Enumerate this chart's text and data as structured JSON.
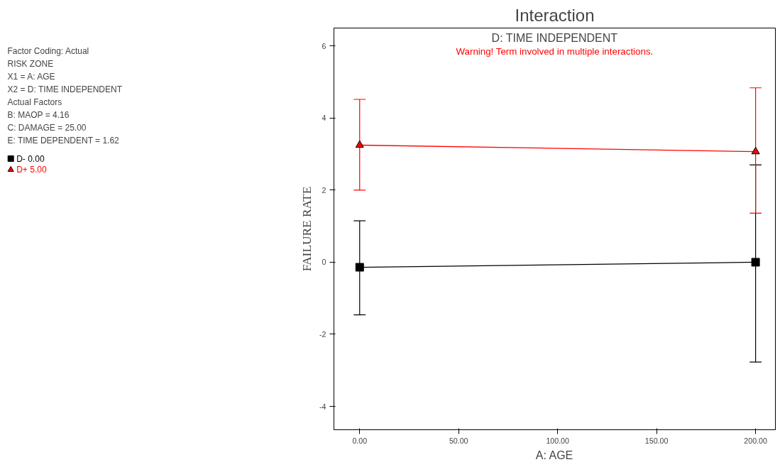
{
  "chart_data": {
    "type": "line",
    "title": "Interaction",
    "subtitle": "D: TIME INDEPENDENT",
    "xlabel": "A: AGE",
    "ylabel": "FAILURE RATE",
    "x": [
      0,
      200
    ],
    "xlim": [
      -13,
      210
    ],
    "xticks": [
      {
        "value": 0,
        "label": "0.00"
      },
      {
        "value": 50,
        "label": "50.00"
      },
      {
        "value": 100,
        "label": "100.00"
      },
      {
        "value": 150,
        "label": "150.00"
      },
      {
        "value": 200,
        "label": "200.00"
      }
    ],
    "ylim": [
      -4.65,
      6.5
    ],
    "yticks": [
      -4,
      -2,
      0,
      2,
      4,
      6
    ],
    "series": [
      {
        "name": "D- 0.00",
        "color": "#000000",
        "marker": "square",
        "values": [
          -0.14,
          0.0
        ],
        "errors": [
          [
            -1.46,
            1.15
          ],
          [
            -2.77,
            2.7
          ]
        ]
      },
      {
        "name": "D+ 5.00",
        "color": "#ff0000",
        "marker": "triangle",
        "values": [
          3.25,
          3.07
        ],
        "errors": [
          [
            2.0,
            4.52
          ],
          [
            1.36,
            4.84
          ]
        ]
      }
    ],
    "annotations": [
      {
        "text": "Warning! Term involved in multiple interactions."
      },
      "Factor Coding: Actual",
      "RISK ZONE",
      "X1 = A: AGE",
      "X2 = D: TIME INDEPENDENT",
      "Actual Factors",
      "B: MAOP = 4.16",
      "C: DAMAGE = 25.00",
      "E: TIME DEPENDENT = 1.62"
    ],
    "grid": false,
    "legend": "left",
    "line_style": "solid"
  }
}
